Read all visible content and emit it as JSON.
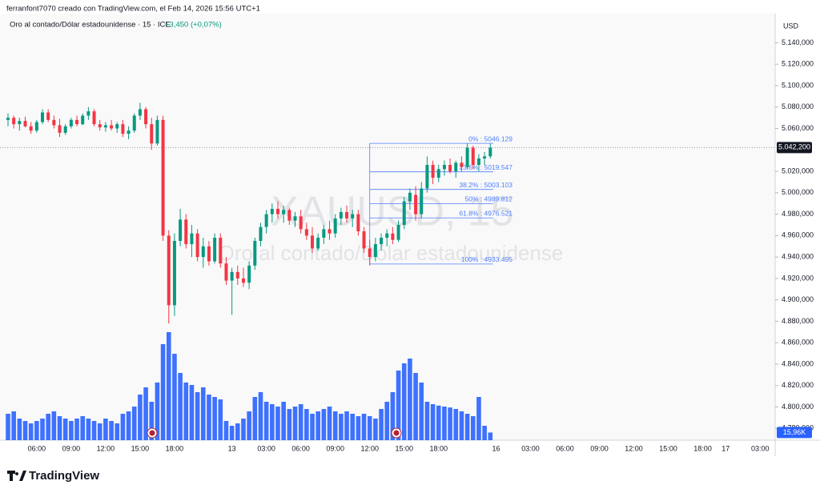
{
  "chart_data": {
    "type": "candlestick",
    "header": "ferranfont7070 creado con TradingView.com, el Feb 14, 2026 15:56 UTC+1",
    "title": "Oro al contado/Dólar estadounidense · 15 · ICE",
    "change": "+3,450 (+0,07%)",
    "watermark_symbol": "XAUUSD, 15",
    "watermark_name": "Oro al contado/Dólar estadounidense",
    "currency": "USD",
    "brand": "TradingView",
    "up_color": "#089981",
    "down_color": "#f23645",
    "volume_color": "#2962ff",
    "ylim": [
      4769,
      5165
    ],
    "yticks": [
      {
        "value": 5140,
        "label": "5.140,000"
      },
      {
        "value": 5120,
        "label": "5.120,000"
      },
      {
        "value": 5100,
        "label": "5.100,000"
      },
      {
        "value": 5080,
        "label": "5.080,000"
      },
      {
        "value": 5060,
        "label": "5.060,000"
      },
      {
        "value": 5020,
        "label": "5.020,000"
      },
      {
        "value": 5000,
        "label": "5.000,000"
      },
      {
        "value": 4980,
        "label": "4.980,000"
      },
      {
        "value": 4960,
        "label": "4.960,000"
      },
      {
        "value": 4940,
        "label": "4.940,000"
      },
      {
        "value": 4920,
        "label": "4.920,000"
      },
      {
        "value": 4900,
        "label": "4.900,000"
      },
      {
        "value": 4880,
        "label": "4.880,000"
      },
      {
        "value": 4860,
        "label": "4.860,000"
      },
      {
        "value": 4840,
        "label": "4.840,000"
      },
      {
        "value": 4820,
        "label": "4.820,000"
      },
      {
        "value": 4800,
        "label": "4.800,000"
      },
      {
        "value": 4780,
        "label": "4.780,000"
      }
    ],
    "last_price": {
      "value": 5042.2,
      "label": "5.042,200"
    },
    "last_volume": {
      "value": 15.96,
      "label": "15,96K"
    },
    "fib_levels": [
      {
        "value": 5046.129,
        "label": "0% : 5046.129"
      },
      {
        "value": 5019.547,
        "label": "23.6% : 5019.547"
      },
      {
        "value": 5003.103,
        "label": "38.2% : 5003.103"
      },
      {
        "value": 4989.812,
        "label": "50% : 4989.812"
      },
      {
        "value": 4976.521,
        "label": "61.8% : 4976.521"
      },
      {
        "value": 4933.495,
        "label": "100% : 4933.495"
      }
    ],
    "categories": [
      null,
      null,
      null,
      null,
      null,
      "06:00",
      null,
      null,
      null,
      null,
      null,
      "09:00",
      null,
      null,
      null,
      null,
      null,
      "12:00",
      null,
      null,
      null,
      null,
      null,
      "15:00",
      null,
      null,
      null,
      null,
      null,
      "18:00",
      null,
      null,
      null,
      null,
      null,
      null,
      null,
      null,
      null,
      "13",
      null,
      null,
      null,
      null,
      null,
      "03:00",
      null,
      null,
      null,
      null,
      null,
      "06:00",
      null,
      null,
      null,
      null,
      null,
      "09:00",
      null,
      null,
      null,
      null,
      null,
      "12:00",
      null,
      null,
      null,
      null,
      null,
      "15:00",
      null,
      null,
      null,
      null,
      null,
      "18:00",
      null,
      null,
      null,
      null,
      null,
      null,
      null,
      null,
      null,
      "16",
      null,
      null,
      null,
      null,
      null,
      "03:00",
      null,
      null,
      null,
      null,
      null,
      "06:00",
      null,
      null,
      null,
      null,
      null,
      "09:00",
      null,
      null,
      null,
      null,
      null,
      "12:00",
      null,
      null,
      null,
      null,
      null,
      "15:00",
      null,
      null,
      null,
      null,
      null,
      "18:00",
      null,
      null,
      null,
      "17",
      null,
      null,
      null,
      null,
      null,
      "03:00",
      null
    ],
    "open": [
      5068,
      5070,
      5064,
      5067,
      5062,
      5058,
      5066,
      5075,
      5068,
      5063,
      5056,
      5062,
      5068,
      5064,
      5072,
      5076,
      5064,
      5061,
      5063,
      5060,
      5064,
      5055,
      5058,
      5072,
      5078,
      5064,
      5046,
      5068,
      4960,
      4895,
      4955,
      4975,
      4952,
      4962,
      4940,
      4950,
      4936,
      4958,
      4934,
      4918,
      4926,
      4920,
      4916,
      4932,
      4955,
      4968,
      4980,
      4985,
      4980,
      4984,
      4974,
      4978,
      4966,
      4960,
      4948,
      4958,
      4966,
      4962,
      4976,
      4982,
      4976,
      4980,
      4964,
      4948,
      4940,
      4952,
      4958,
      4962,
      4956,
      4970,
      4992,
      4998,
      4980,
      5004,
      5026,
      5014,
      5022,
      5026,
      5020,
      5028,
      5024,
      5042,
      5026,
      5032,
      5034,
      null,
      null,
      null,
      null,
      null,
      null,
      null,
      null,
      null,
      null,
      null,
      null,
      null,
      null,
      null,
      null,
      null,
      null,
      null,
      null,
      null,
      null,
      null,
      null,
      null,
      null,
      null,
      null,
      null,
      null,
      null,
      null,
      null,
      null,
      null,
      null,
      null,
      null,
      null,
      null,
      null,
      null,
      null,
      null,
      null,
      null,
      null,
      null
    ],
    "high": [
      5074,
      5072,
      5070,
      5071,
      5066,
      5068,
      5078,
      5078,
      5072,
      5069,
      5064,
      5070,
      5072,
      5074,
      5080,
      5078,
      5068,
      5066,
      5068,
      5066,
      5068,
      5062,
      5074,
      5084,
      5080,
      5070,
      5072,
      5072,
      4965,
      4962,
      4985,
      4980,
      4970,
      4966,
      4958,
      4955,
      4962,
      4962,
      4940,
      4930,
      4932,
      4930,
      4936,
      4958,
      4972,
      4984,
      4990,
      4992,
      4988,
      4986,
      4982,
      4984,
      4972,
      4968,
      4962,
      4970,
      4974,
      4980,
      4986,
      4988,
      4984,
      4984,
      4968,
      4956,
      4958,
      4962,
      4966,
      4968,
      4974,
      4996,
      5004,
      5006,
      5010,
      5034,
      5030,
      5026,
      5030,
      5032,
      5030,
      5034,
      5046,
      5044,
      5036,
      5038,
      5046,
      null,
      null,
      null,
      null,
      null,
      null,
      null,
      null,
      null,
      null,
      null,
      null,
      null,
      null,
      null,
      null,
      null,
      null,
      null,
      null,
      null,
      null,
      null,
      null,
      null,
      null,
      null,
      null,
      null,
      null,
      null,
      null,
      null,
      null,
      null,
      null,
      null,
      null,
      null,
      null,
      null,
      null,
      null,
      null,
      null,
      null,
      null,
      null
    ],
    "low": [
      5062,
      5060,
      5058,
      5061,
      5055,
      5056,
      5064,
      5066,
      5060,
      5052,
      5054,
      5060,
      5062,
      5063,
      5068,
      5062,
      5058,
      5057,
      5058,
      5056,
      5052,
      5050,
      5056,
      5068,
      5060,
      5040,
      5044,
      4955,
      4878,
      4885,
      4950,
      4948,
      4940,
      4936,
      4930,
      4932,
      4934,
      4930,
      4914,
      4886,
      4914,
      4912,
      4910,
      4928,
      4950,
      4962,
      4972,
      4976,
      4972,
      4970,
      4968,
      4962,
      4956,
      4944,
      4946,
      4952,
      4956,
      4958,
      4970,
      4972,
      4968,
      4960,
      4944,
      4932,
      4936,
      4946,
      4950,
      4952,
      4954,
      4966,
      4984,
      4974,
      4976,
      5000,
      5008,
      5010,
      5016,
      5018,
      5014,
      5020,
      5022,
      5022,
      5020,
      5026,
      5032,
      null,
      null,
      null,
      null,
      null,
      null,
      null,
      null,
      null,
      null,
      null,
      null,
      null,
      null,
      null,
      null,
      null,
      null,
      null,
      null,
      null,
      null,
      null,
      null,
      null,
      null,
      null,
      null,
      null,
      null,
      null,
      null,
      null,
      null,
      null,
      null,
      null,
      null,
      null,
      null,
      null,
      null,
      null,
      null,
      null,
      null,
      null,
      null
    ],
    "close": [
      5070,
      5064,
      5067,
      5062,
      5058,
      5066,
      5075,
      5068,
      5063,
      5056,
      5062,
      5068,
      5064,
      5072,
      5076,
      5064,
      5061,
      5063,
      5060,
      5064,
      5055,
      5058,
      5072,
      5078,
      5064,
      5046,
      5068,
      4960,
      4895,
      4955,
      4975,
      4952,
      4962,
      4940,
      4950,
      4936,
      4958,
      4934,
      4918,
      4926,
      4920,
      4916,
      4932,
      4955,
      4968,
      4980,
      4985,
      4980,
      4984,
      4974,
      4978,
      4966,
      4960,
      4948,
      4958,
      4966,
      4962,
      4976,
      4982,
      4976,
      4980,
      4964,
      4948,
      4940,
      4952,
      4958,
      4962,
      4956,
      4970,
      4992,
      5000,
      4980,
      5004,
      5026,
      5014,
      5022,
      5026,
      5020,
      5028,
      5024,
      5042,
      5026,
      5032,
      5034,
      5042.2,
      null,
      null,
      null,
      null,
      null,
      null,
      null,
      null,
      null,
      null,
      null,
      null,
      null,
      null,
      null,
      null,
      null,
      null,
      null,
      null,
      null,
      null,
      null,
      null,
      null,
      null,
      null,
      null,
      null,
      null,
      null,
      null,
      null,
      null,
      null,
      null,
      null,
      null,
      null,
      null,
      null,
      null,
      null,
      null,
      null,
      null,
      null,
      null
    ],
    "volume": [
      55,
      60,
      45,
      40,
      35,
      40,
      45,
      55,
      60,
      50,
      45,
      40,
      45,
      50,
      45,
      40,
      35,
      45,
      40,
      35,
      55,
      60,
      70,
      95,
      110,
      80,
      120,
      200,
      225,
      180,
      140,
      120,
      115,
      100,
      110,
      95,
      90,
      85,
      40,
      30,
      35,
      45,
      60,
      90,
      100,
      80,
      75,
      70,
      80,
      65,
      70,
      75,
      65,
      55,
      60,
      65,
      70,
      60,
      55,
      60,
      55,
      50,
      55,
      50,
      45,
      65,
      80,
      100,
      145,
      160,
      170,
      140,
      120,
      80,
      75,
      72,
      70,
      68,
      65,
      60,
      55,
      50,
      90,
      30,
      15.96,
      null,
      null,
      null,
      null,
      null,
      null,
      null,
      null,
      null,
      null,
      null,
      null,
      null,
      null,
      null,
      null,
      null,
      null,
      null,
      null,
      null,
      null,
      null,
      null,
      null,
      null,
      null,
      null,
      null,
      null,
      null,
      null,
      null,
      null,
      null,
      null,
      null,
      null,
      null,
      null,
      null,
      null,
      null,
      null,
      null,
      null,
      null,
      null
    ]
  }
}
